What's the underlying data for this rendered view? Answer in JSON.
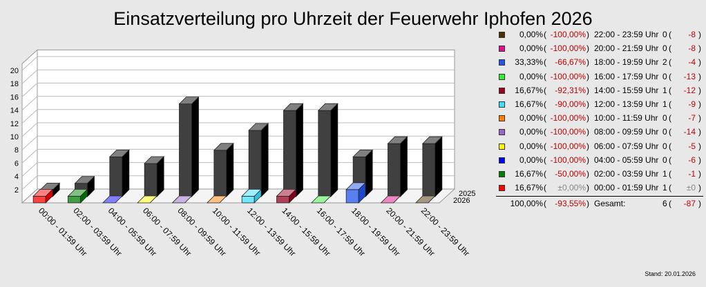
{
  "chart_data": {
    "type": "bar",
    "title": "Einsatzverteilung pro Uhrzeit der Feuerwehr Iphofen 2026",
    "categories": [
      "00:00 - 01:59 Uhr",
      "02:00 - 03:59 Uhr",
      "04:00 - 05:59 Uhr",
      "06:00 - 07:59 Uhr",
      "08:00 - 09:59 Uhr",
      "10:00 - 11:59 Uhr",
      "12:00 - 13:59 Uhr",
      "14:00 - 15:59 Uhr",
      "16:00 - 17:59 Uhr",
      "18:00 - 19:59 Uhr",
      "20:00 - 21:59 Uhr",
      "22:00 - 23:59 Uhr"
    ],
    "colors": [
      "#ff0000",
      "#008000",
      "#0000ff",
      "#ffff00",
      "#9966cc",
      "#ff8000",
      "#40e0ff",
      "#990022",
      "#33ee33",
      "#2255ee",
      "#dd1188",
      "#4a3000"
    ],
    "series": [
      {
        "name": "2026",
        "values": [
          1,
          1,
          0,
          0,
          0,
          0,
          1,
          1,
          0,
          2,
          0,
          0
        ]
      },
      {
        "name": "2025",
        "values": [
          1,
          2,
          6,
          5,
          14,
          7,
          10,
          13,
          13,
          6,
          8,
          8
        ]
      }
    ],
    "yticks": [
      2,
      4,
      6,
      8,
      10,
      12,
      14,
      16,
      18,
      20
    ],
    "ylim": [
      0,
      21
    ],
    "grid": true
  },
  "legend": [
    {
      "pct": "0,00%",
      "chg": "-100,00%",
      "slot": "22:00 - 23:59 Uhr",
      "count": "0",
      "diff": "-8",
      "color": "#4a3000"
    },
    {
      "pct": "0,00%",
      "chg": "-100,00%",
      "slot": "20:00 - 21:59 Uhr",
      "count": "0",
      "diff": "-8",
      "color": "#dd1188"
    },
    {
      "pct": "33,33%",
      "chg": "-66,67%",
      "slot": "18:00 - 19:59 Uhr",
      "count": "2",
      "diff": "-4",
      "color": "#2255ee"
    },
    {
      "pct": "0,00%",
      "chg": "-100,00%",
      "slot": "16:00 - 17:59 Uhr",
      "count": "0",
      "diff": "-13",
      "color": "#33ee33"
    },
    {
      "pct": "16,67%",
      "chg": "-92,31%",
      "slot": "14:00 - 15:59 Uhr",
      "count": "1",
      "diff": "-12",
      "color": "#990022"
    },
    {
      "pct": "16,67%",
      "chg": "-90,00%",
      "slot": "12:00 - 13:59 Uhr",
      "count": "1",
      "diff": "-9",
      "color": "#40e0ff"
    },
    {
      "pct": "0,00%",
      "chg": "-100,00%",
      "slot": "10:00 - 11:59 Uhr",
      "count": "0",
      "diff": "-7",
      "color": "#ff8000"
    },
    {
      "pct": "0,00%",
      "chg": "-100,00%",
      "slot": "08:00 - 09:59 Uhr",
      "count": "0",
      "diff": "-14",
      "color": "#9966cc"
    },
    {
      "pct": "0,00%",
      "chg": "-100,00%",
      "slot": "06:00 - 07:59 Uhr",
      "count": "0",
      "diff": "-5",
      "color": "#ffff00"
    },
    {
      "pct": "0,00%",
      "chg": "-100,00%",
      "slot": "04:00 - 05:59 Uhr",
      "count": "0",
      "diff": "-6",
      "color": "#0000ff"
    },
    {
      "pct": "16,67%",
      "chg": "-50,00%",
      "slot": "02:00 - 03:59 Uhr",
      "count": "1",
      "diff": "-1",
      "color": "#008000"
    },
    {
      "pct": "16,67%",
      "chg": "±0,00%",
      "slot": "00:00 - 01:59 Uhr",
      "count": "1",
      "diff": "±0",
      "color": "#ff0000",
      "neutral": true
    }
  ],
  "total": {
    "pct": "100,00%",
    "chg": "-93,55%",
    "label": "Gesamt:",
    "count": "6",
    "diff": "-87"
  },
  "footnote": "Stand: 20.01.2026"
}
